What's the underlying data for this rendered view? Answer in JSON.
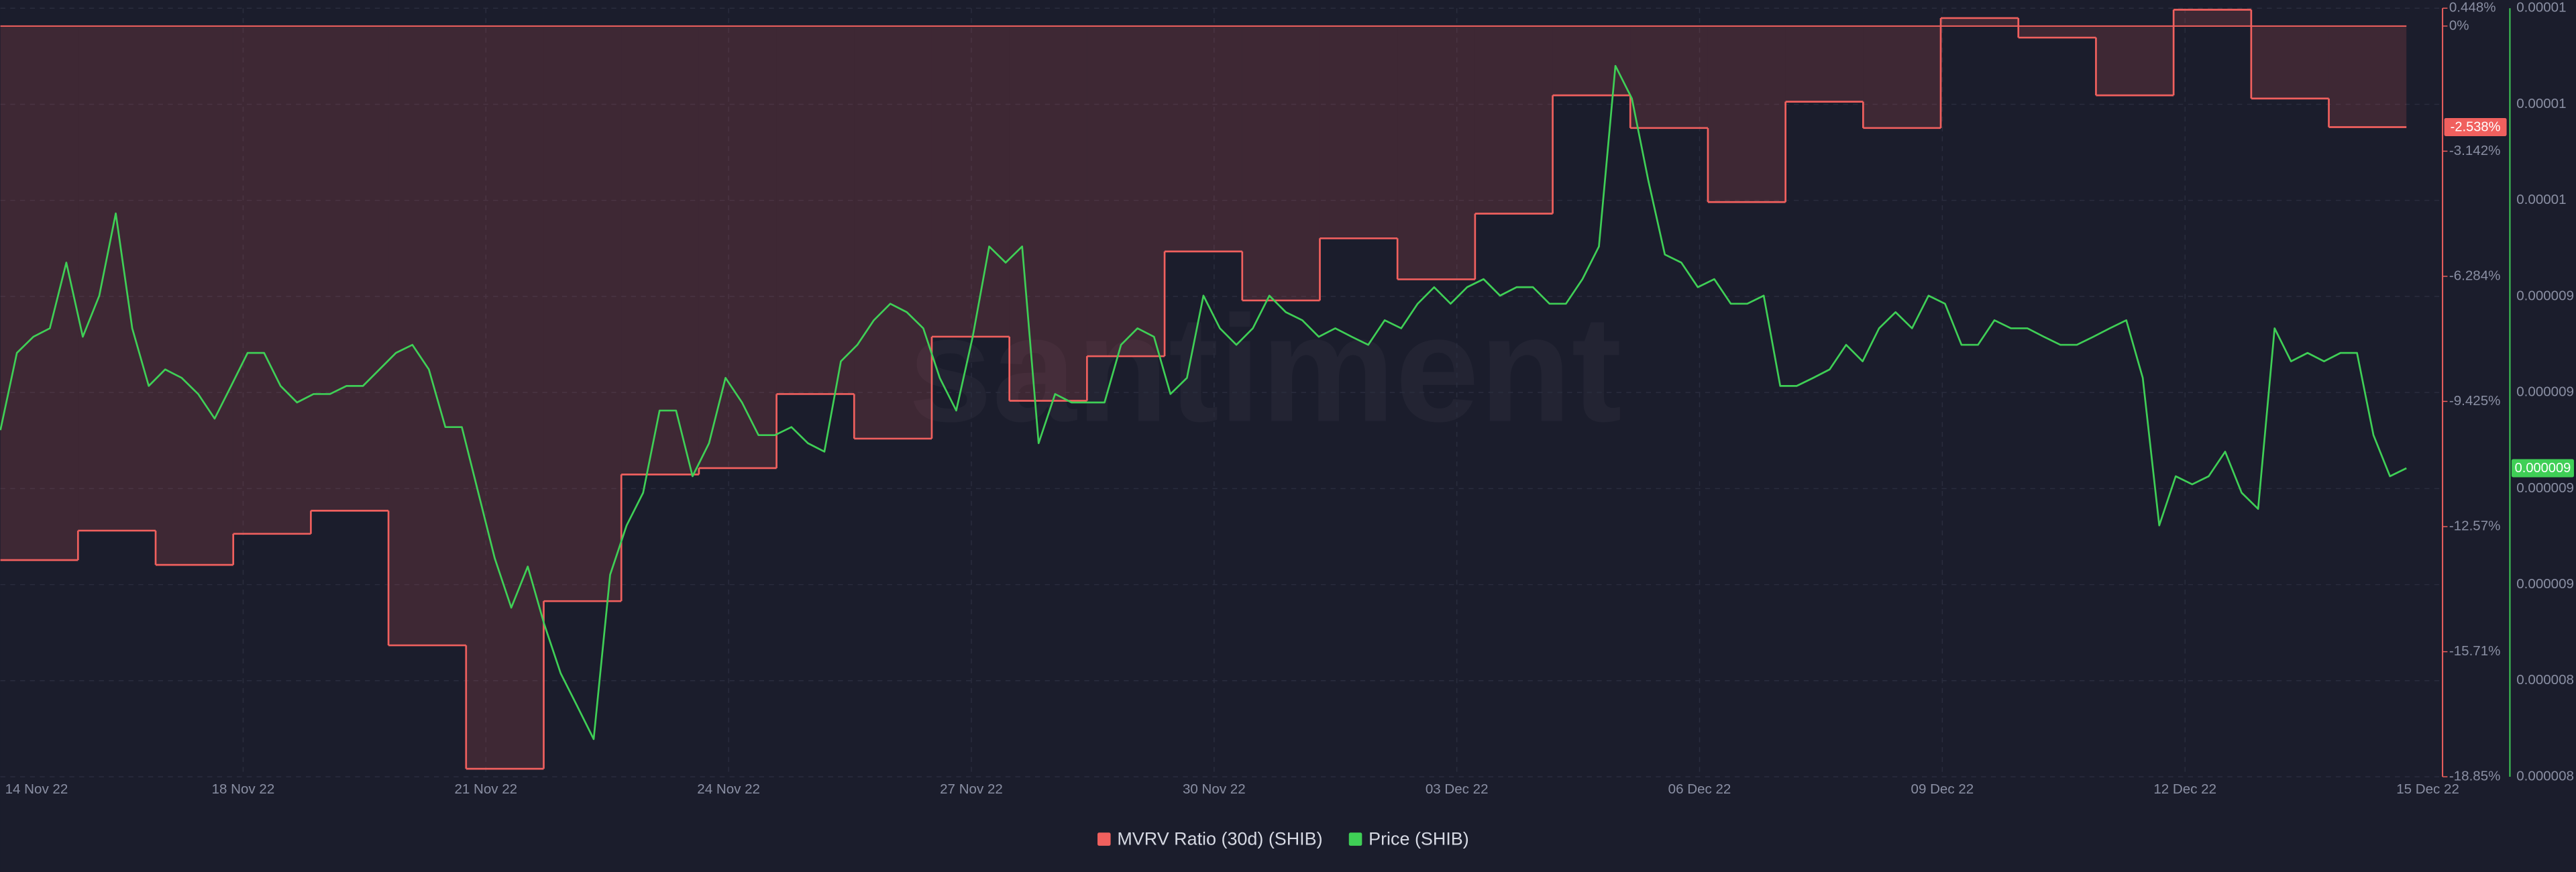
{
  "chart_data": {
    "type": "line",
    "watermark": "santiment",
    "grid": true,
    "xlim": [
      "2022-11-15",
      "2022-12-15"
    ],
    "xticks": [
      {
        "value": "2022-11-14",
        "label": "14 Nov 22"
      },
      {
        "value": "2022-11-18",
        "label": "18 Nov 22"
      },
      {
        "value": "2022-11-21",
        "label": "21 Nov 22"
      },
      {
        "value": "2022-11-24",
        "label": "24 Nov 22"
      },
      {
        "value": "2022-11-27",
        "label": "27 Nov 22"
      },
      {
        "value": "2022-11-30",
        "label": "30 Nov 22"
      },
      {
        "value": "2022-12-03",
        "label": "03 Dec 22"
      },
      {
        "value": "2022-12-06",
        "label": "06 Dec 22"
      },
      {
        "value": "2022-12-09",
        "label": "09 Dec 22"
      },
      {
        "value": "2022-12-12",
        "label": "12 Dec 22"
      },
      {
        "value": "2022-12-15",
        "label": "15 Dec 22"
      }
    ],
    "ylim": [
      -18.85,
      0.448
    ],
    "yticks": [
      {
        "value": 0.448,
        "label": "0.448%"
      },
      {
        "value": 0,
        "label": "0%"
      },
      {
        "value": -3.142,
        "label": "-3.142%"
      },
      {
        "value": -6.284,
        "label": "-6.284%"
      },
      {
        "value": -9.425,
        "label": "-9.425%"
      },
      {
        "value": -12.57,
        "label": "-12.57%"
      },
      {
        "value": -15.71,
        "label": "-15.71%"
      },
      {
        "value": -18.85,
        "label": "-18.85%"
      }
    ],
    "y2lim": [
      8e-06,
      1e-05
    ],
    "y2ticks": [
      {
        "value": 1e-05,
        "label": "0.00001"
      },
      {
        "value": 9.75e-06,
        "label": "0.00001"
      },
      {
        "value": 9.5e-06,
        "label": "0.00001"
      },
      {
        "value": 9.25e-06,
        "label": "0.000009"
      },
      {
        "value": 9e-06,
        "label": "0.000009"
      },
      {
        "value": 8.75e-06,
        "label": "0.000009"
      },
      {
        "value": 8.5e-06,
        "label": "0.000009"
      },
      {
        "value": 8.25e-06,
        "label": "0.000008"
      },
      {
        "value": 8e-06,
        "label": "0.000008"
      }
    ],
    "series": [
      {
        "name": "MVRV Ratio (30d) (SHIB)",
        "color": "#f0605e",
        "style": "step",
        "axis": "y",
        "values": [
          -13.41,
          -12.67,
          -13.53,
          -12.75,
          -12.17,
          -15.55,
          -18.65,
          -14.44,
          -11.26,
          -11.1,
          -9.24,
          -10.36,
          -7.8,
          -9.41,
          -8.29,
          -5.66,
          -6.89,
          -5.33,
          -6.36,
          -4.71,
          -1.74,
          -2.56,
          -4.42,
          -1.9,
          -2.56,
          0.2,
          -0.29,
          -1.74,
          0.41,
          -1.82,
          -2.538
        ],
        "value_labels": [
          null,
          null,
          null,
          null,
          null,
          null,
          null,
          null,
          null,
          null,
          null,
          null,
          null,
          null,
          null,
          null,
          null,
          null,
          null,
          null,
          null,
          null,
          null,
          null,
          null,
          null,
          null,
          null,
          null,
          null,
          "-2.538%"
        ]
      },
      {
        "name": "Price (SHIB)",
        "color": "#3fcf56",
        "style": "line",
        "axis": "y2",
        "values": [
          8.902e-06,
          9.103e-06,
          9.145e-06,
          9.167e-06,
          9.338e-06,
          9.145e-06,
          9.252e-06,
          9.466e-06,
          9.167e-06,
          9.017e-06,
          9.06e-06,
          9.038e-06,
          8.996e-06,
          8.932e-06,
          9.017e-06,
          9.103e-06,
          9.103e-06,
          9.017e-06,
          8.974e-06,
          8.996e-06,
          8.996e-06,
          9.017e-06,
          9.017e-06,
          9.06e-06,
          9.103e-06,
          9.124e-06,
          9.06e-06,
          8.91e-06,
          8.91e-06,
          8.739e-06,
          8.568e-06,
          8.44e-06,
          8.547e-06,
          8.397e-06,
          8.269e-06,
          8.184e-06,
          8.098e-06,
          8.526e-06,
          8.654e-06,
          8.739e-06,
          8.953e-06,
          8.953e-06,
          8.782e-06,
          8.868e-06,
          9.038e-06,
          8.974e-06,
          8.889e-06,
          8.889e-06,
          8.91e-06,
          8.868e-06,
          8.846e-06,
          9.081e-06,
          9.124e-06,
          9.188e-06,
          9.231e-06,
          9.209e-06,
          9.167e-06,
          9.038e-06,
          8.953e-06,
          9.145e-06,
          9.38e-06,
          9.338e-06,
          9.38e-06,
          8.868e-06,
          8.996e-06,
          8.974e-06,
          8.974e-06,
          8.974e-06,
          9.124e-06,
          9.167e-06,
          9.145e-06,
          8.996e-06,
          9.038e-06,
          9.252e-06,
          9.167e-06,
          9.124e-06,
          9.167e-06,
          9.252e-06,
          9.209e-06,
          9.188e-06,
          9.145e-06,
          9.167e-06,
          9.145e-06,
          9.124e-06,
          9.188e-06,
          9.167e-06,
          9.231e-06,
          9.274e-06,
          9.231e-06,
          9.274e-06,
          9.295e-06,
          9.252e-06,
          9.274e-06,
          9.274e-06,
          9.231e-06,
          9.231e-06,
          9.295e-06,
          9.38e-06,
          9.85e-06,
          9.765e-06,
          9.551e-06,
          9.359e-06,
          9.338e-06,
          9.274e-06,
          9.295e-06,
          9.231e-06,
          9.231e-06,
          9.252e-06,
          9.017e-06,
          9.017e-06,
          9.038e-06,
          9.06e-06,
          9.124e-06,
          9.081e-06,
          9.167e-06,
          9.209e-06,
          9.167e-06,
          9.252e-06,
          9.231e-06,
          9.124e-06,
          9.124e-06,
          9.188e-06,
          9.167e-06,
          9.167e-06,
          9.145e-06,
          9.124e-06,
          9.124e-06,
          9.145e-06,
          9.167e-06,
          9.188e-06,
          9.038e-06,
          8.654e-06,
          8.782e-06,
          8.761e-06,
          8.782e-06,
          8.846e-06,
          8.739e-06,
          8.697e-06,
          9.167e-06,
          9.081e-06,
          9.103e-06,
          9.081e-06,
          9.103e-06,
          9.103e-06,
          8.889e-06,
          8.782e-06,
          8.803e-06
        ],
        "value_labels": [
          null,
          null,
          null,
          null,
          null,
          null,
          null,
          null,
          null,
          null,
          null,
          null,
          null,
          null,
          null,
          null,
          null,
          null,
          null,
          null,
          null,
          null,
          null,
          null,
          null,
          null,
          null,
          null,
          null,
          null,
          null,
          null,
          null,
          null,
          null,
          null,
          null,
          null,
          null,
          null,
          null,
          null,
          null,
          null,
          null,
          null,
          null,
          null,
          null,
          null,
          null,
          null,
          null,
          null,
          null,
          null,
          null,
          null,
          null,
          null,
          null,
          null,
          null,
          null,
          null,
          null,
          null,
          null,
          null,
          null,
          null,
          null,
          null,
          null,
          null,
          null,
          null,
          null,
          null,
          null,
          null,
          null,
          null,
          null,
          null,
          null,
          null,
          null,
          null,
          null,
          null,
          null,
          null,
          null,
          null,
          null,
          null,
          null,
          null,
          null,
          null,
          null,
          null,
          null,
          null,
          null,
          null,
          null,
          null,
          null,
          null,
          null,
          null,
          null,
          null,
          null,
          null,
          null,
          null,
          null,
          null,
          null,
          null,
          null,
          null,
          null,
          null,
          null,
          null,
          null,
          null,
          null,
          null,
          null,
          null,
          null,
          null,
          null,
          null,
          null,
          null,
          null,
          null,
          null,
          null,
          null,
          "0.000009"
        ]
      }
    ]
  }
}
